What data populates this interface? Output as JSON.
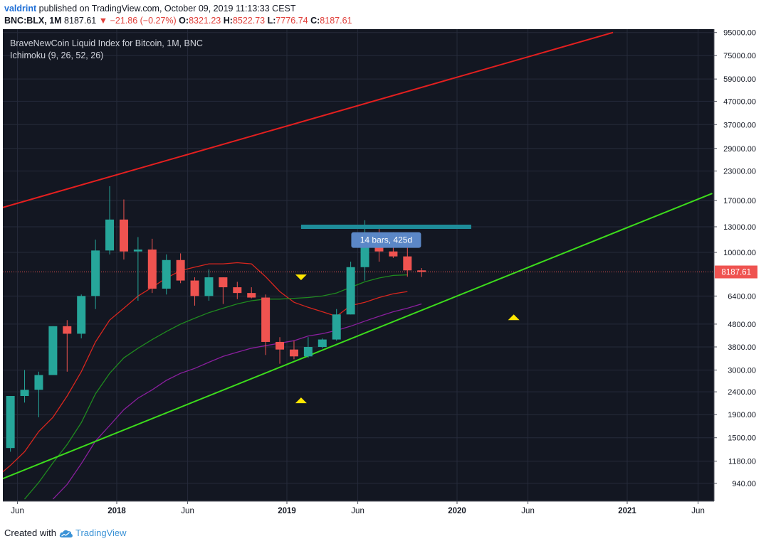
{
  "header": {
    "user": "valdrint",
    "published": " published on TradingView.com, October 09, 2019 11:13:33 CEST",
    "symbol": "BNC:BLX, 1M",
    "price": "8187.61",
    "change": "▼ −21.86 (−0.27%)",
    "o_label": "O:",
    "o_value": "8321.23",
    "h_label": "H:",
    "h_value": "8522.73",
    "l_label": "L:",
    "l_value": "7776.74",
    "c_label": "C:",
    "c_value": "8187.61"
  },
  "footer": {
    "created_with": "Created with",
    "brand": "TradingView"
  },
  "colors": {
    "background": "#131722",
    "grid": "#262b3b",
    "bull": "#26a69a",
    "bear": "#ef5350",
    "channel_top": "#e41f1f",
    "channel_bottom": "#3ddc1c",
    "resistance": "#1e8c99",
    "marker": "#ffe600",
    "conversion_line": "#d7261e",
    "base_line": "#1f8a1f",
    "lagging_span": "#8a1f9e",
    "axis_text": "#b2b5be",
    "current_price_bg": "#ef5350",
    "annotation_bg": "#5b87c7"
  },
  "chart_data": {
    "type": "candlestick",
    "title": "BraveNewCoin Liquid Index for Bitcoin, 1M, BNC",
    "indicator_label": "Ichimoku (9, 26, 52, 26)",
    "y_scale": "log",
    "y_ticks": [
      "95000.00",
      "75000.00",
      "59000.00",
      "47000.00",
      "37000.00",
      "29000.00",
      "23000.00",
      "17000.00",
      "13000.00",
      "10000.00",
      "6400.00",
      "4800.00",
      "3800.00",
      "3000.00",
      "2400.00",
      "1900.00",
      "1500.00",
      "1180.00",
      "940.00"
    ],
    "x_ticks": [
      "Jun",
      "2018",
      "Jun",
      "2019",
      "Jun",
      "2020",
      "Jun",
      "2021",
      "Jun"
    ],
    "x_tick_dates": [
      "2017-06",
      "2018-01",
      "2018-06",
      "2019-01",
      "2019-06",
      "2020-01",
      "2020-06",
      "2021-01",
      "2021-06"
    ],
    "current_price": "8187.61",
    "candles": [
      {
        "date": "2017-05",
        "open": 1350,
        "high": 2300,
        "low": 1300,
        "close": 2300
      },
      {
        "date": "2017-06",
        "open": 2300,
        "high": 3000,
        "low": 2150,
        "close": 2450
      },
      {
        "date": "2017-07",
        "open": 2450,
        "high": 2950,
        "low": 1850,
        "close": 2850
      },
      {
        "date": "2017-08",
        "open": 2850,
        "high": 4700,
        "low": 2850,
        "close": 4700
      },
      {
        "date": "2017-09",
        "open": 4700,
        "high": 5000,
        "low": 2950,
        "close": 4350
      },
      {
        "date": "2017-10",
        "open": 4350,
        "high": 6500,
        "low": 4150,
        "close": 6400
      },
      {
        "date": "2017-11",
        "open": 6400,
        "high": 11400,
        "low": 5600,
        "close": 10200
      },
      {
        "date": "2017-12",
        "open": 10200,
        "high": 19700,
        "low": 9800,
        "close": 14000
      },
      {
        "date": "2018-01",
        "open": 14000,
        "high": 17200,
        "low": 9300,
        "close": 10100
      },
      {
        "date": "2018-02",
        "open": 10100,
        "high": 11700,
        "low": 6100,
        "close": 10300
      },
      {
        "date": "2018-03",
        "open": 10300,
        "high": 11500,
        "low": 6600,
        "close": 6900
      },
      {
        "date": "2018-04",
        "open": 6900,
        "high": 9800,
        "low": 6500,
        "close": 9250
      },
      {
        "date": "2018-05",
        "open": 9250,
        "high": 9900,
        "low": 7300,
        "close": 7500
      },
      {
        "date": "2018-06",
        "open": 7500,
        "high": 7750,
        "low": 5800,
        "close": 6400
      },
      {
        "date": "2018-07",
        "open": 6400,
        "high": 8400,
        "low": 6100,
        "close": 7750
      },
      {
        "date": "2018-08",
        "open": 7750,
        "high": 7750,
        "low": 5900,
        "close": 7000
      },
      {
        "date": "2018-09",
        "open": 7000,
        "high": 7400,
        "low": 6200,
        "close": 6600
      },
      {
        "date": "2018-10",
        "open": 6600,
        "high": 7000,
        "low": 6250,
        "close": 6300
      },
      {
        "date": "2018-11",
        "open": 6300,
        "high": 6500,
        "low": 3500,
        "close": 4000
      },
      {
        "date": "2018-12",
        "open": 4000,
        "high": 4200,
        "low": 3200,
        "close": 3700
      },
      {
        "date": "2019-01",
        "open": 3700,
        "high": 4050,
        "low": 3350,
        "close": 3450
      },
      {
        "date": "2019-02",
        "open": 3450,
        "high": 4200,
        "low": 3400,
        "close": 3800
      },
      {
        "date": "2019-03",
        "open": 3800,
        "high": 4150,
        "low": 3750,
        "close": 4100
      },
      {
        "date": "2019-04",
        "open": 4100,
        "high": 5600,
        "low": 4050,
        "close": 5300
      },
      {
        "date": "2019-05",
        "open": 5300,
        "high": 9100,
        "low": 5300,
        "close": 8600
      },
      {
        "date": "2019-06",
        "open": 8600,
        "high": 13900,
        "low": 7500,
        "close": 10900
      },
      {
        "date": "2019-07",
        "open": 10900,
        "high": 13200,
        "low": 9100,
        "close": 10100
      },
      {
        "date": "2019-08",
        "open": 10100,
        "high": 12300,
        "low": 9450,
        "close": 9600
      },
      {
        "date": "2019-09",
        "open": 9600,
        "high": 10900,
        "low": 7800,
        "close": 8322
      },
      {
        "date": "2019-10",
        "open": 8321.23,
        "high": 8522.73,
        "low": 7776.74,
        "close": 8187.61
      }
    ],
    "ichimoku": {
      "conversion_line": [
        {
          "date": "2017-04",
          "value": 1000
        },
        {
          "date": "2017-05",
          "value": 1130
        },
        {
          "date": "2017-06",
          "value": 1300
        },
        {
          "date": "2017-07",
          "value": 1600
        },
        {
          "date": "2017-08",
          "value": 1850
        },
        {
          "date": "2017-09",
          "value": 2300
        },
        {
          "date": "2017-10",
          "value": 2950
        },
        {
          "date": "2017-11",
          "value": 4000
        },
        {
          "date": "2017-12",
          "value": 5000
        },
        {
          "date": "2018-01",
          "value": 5650
        },
        {
          "date": "2018-02",
          "value": 6400
        },
        {
          "date": "2018-03",
          "value": 7000
        },
        {
          "date": "2018-04",
          "value": 7700
        },
        {
          "date": "2018-05",
          "value": 8300
        },
        {
          "date": "2018-06",
          "value": 8600
        },
        {
          "date": "2018-07",
          "value": 8900
        },
        {
          "date": "2018-08",
          "value": 8900
        },
        {
          "date": "2018-09",
          "value": 9000
        },
        {
          "date": "2018-10",
          "value": 8900
        },
        {
          "date": "2018-11",
          "value": 7800
        },
        {
          "date": "2018-12",
          "value": 6700
        },
        {
          "date": "2019-01",
          "value": 6000
        },
        {
          "date": "2019-02",
          "value": 5700
        },
        {
          "date": "2019-03",
          "value": 5450
        },
        {
          "date": "2019-04",
          "value": 5200
        },
        {
          "date": "2019-05",
          "value": 5800
        },
        {
          "date": "2019-06",
          "value": 6000
        },
        {
          "date": "2019-07",
          "value": 6300
        },
        {
          "date": "2019-08",
          "value": 6550
        },
        {
          "date": "2019-09",
          "value": 6700
        }
      ],
      "base_line": [
        {
          "date": "2017-06",
          "value": 800
        },
        {
          "date": "2017-07",
          "value": 950
        },
        {
          "date": "2017-08",
          "value": 1160
        },
        {
          "date": "2017-09",
          "value": 1400
        },
        {
          "date": "2017-10",
          "value": 1750
        },
        {
          "date": "2017-11",
          "value": 2350
        },
        {
          "date": "2017-12",
          "value": 2900
        },
        {
          "date": "2018-01",
          "value": 3400
        },
        {
          "date": "2018-02",
          "value": 3750
        },
        {
          "date": "2018-03",
          "value": 4100
        },
        {
          "date": "2018-04",
          "value": 4450
        },
        {
          "date": "2018-05",
          "value": 4800
        },
        {
          "date": "2018-06",
          "value": 5100
        },
        {
          "date": "2018-07",
          "value": 5400
        },
        {
          "date": "2018-08",
          "value": 5650
        },
        {
          "date": "2018-09",
          "value": 5900
        },
        {
          "date": "2018-10",
          "value": 6100
        },
        {
          "date": "2018-11",
          "value": 6200
        },
        {
          "date": "2018-12",
          "value": 6200
        },
        {
          "date": "2019-01",
          "value": 6250
        },
        {
          "date": "2019-02",
          "value": 6300
        },
        {
          "date": "2019-03",
          "value": 6400
        },
        {
          "date": "2019-04",
          "value": 6600
        },
        {
          "date": "2019-05",
          "value": 7000
        },
        {
          "date": "2019-06",
          "value": 7400
        },
        {
          "date": "2019-07",
          "value": 7700
        },
        {
          "date": "2019-08",
          "value": 7900
        },
        {
          "date": "2019-09",
          "value": 7950
        }
      ],
      "lagging_span": [
        {
          "date": "2017-08",
          "value": 800
        },
        {
          "date": "2017-09",
          "value": 930
        },
        {
          "date": "2017-10",
          "value": 1150
        },
        {
          "date": "2017-11",
          "value": 1450
        },
        {
          "date": "2017-12",
          "value": 1700
        },
        {
          "date": "2018-01",
          "value": 2000
        },
        {
          "date": "2018-02",
          "value": 2250
        },
        {
          "date": "2018-03",
          "value": 2450
        },
        {
          "date": "2018-04",
          "value": 2700
        },
        {
          "date": "2018-05",
          "value": 2900
        },
        {
          "date": "2018-06",
          "value": 3050
        },
        {
          "date": "2018-07",
          "value": 3250
        },
        {
          "date": "2018-08",
          "value": 3450
        },
        {
          "date": "2018-09",
          "value": 3600
        },
        {
          "date": "2018-10",
          "value": 3750
        },
        {
          "date": "2018-11",
          "value": 3850
        },
        {
          "date": "2018-12",
          "value": 3950
        },
        {
          "date": "2019-01",
          "value": 4050
        },
        {
          "date": "2019-02",
          "value": 4250
        },
        {
          "date": "2019-03",
          "value": 4350
        },
        {
          "date": "2019-04",
          "value": 4500
        },
        {
          "date": "2019-05",
          "value": 4700
        },
        {
          "date": "2019-06",
          "value": 4950
        },
        {
          "date": "2019-07",
          "value": 5200
        },
        {
          "date": "2019-08",
          "value": 5450
        },
        {
          "date": "2019-09",
          "value": 5650
        },
        {
          "date": "2019-10",
          "value": 5900
        }
      ]
    },
    "drawings": {
      "channel_top": {
        "start": {
          "date": "2017-03",
          "value": 14600
        },
        "end": {
          "date": "2020-12",
          "value": 95000
        }
      },
      "channel_bottom": {
        "start": {
          "date": "2017-03",
          "value": 880
        },
        "end": {
          "date": "2021-07",
          "value": 18300
        }
      },
      "resistance_zone": {
        "start_date": "2019-02",
        "end_date": "2020-02",
        "value": 13000
      },
      "markers": [
        {
          "shape": "triangle-down",
          "date": "2019-02",
          "value": 7750
        },
        {
          "shape": "triangle-up",
          "date": "2019-02",
          "value": 2200
        },
        {
          "shape": "triangle-up",
          "date": "2020-05",
          "value": 5150
        }
      ],
      "range_label": {
        "text": "14 bars, 425d",
        "date": "2019-08",
        "value": 11350
      }
    }
  }
}
